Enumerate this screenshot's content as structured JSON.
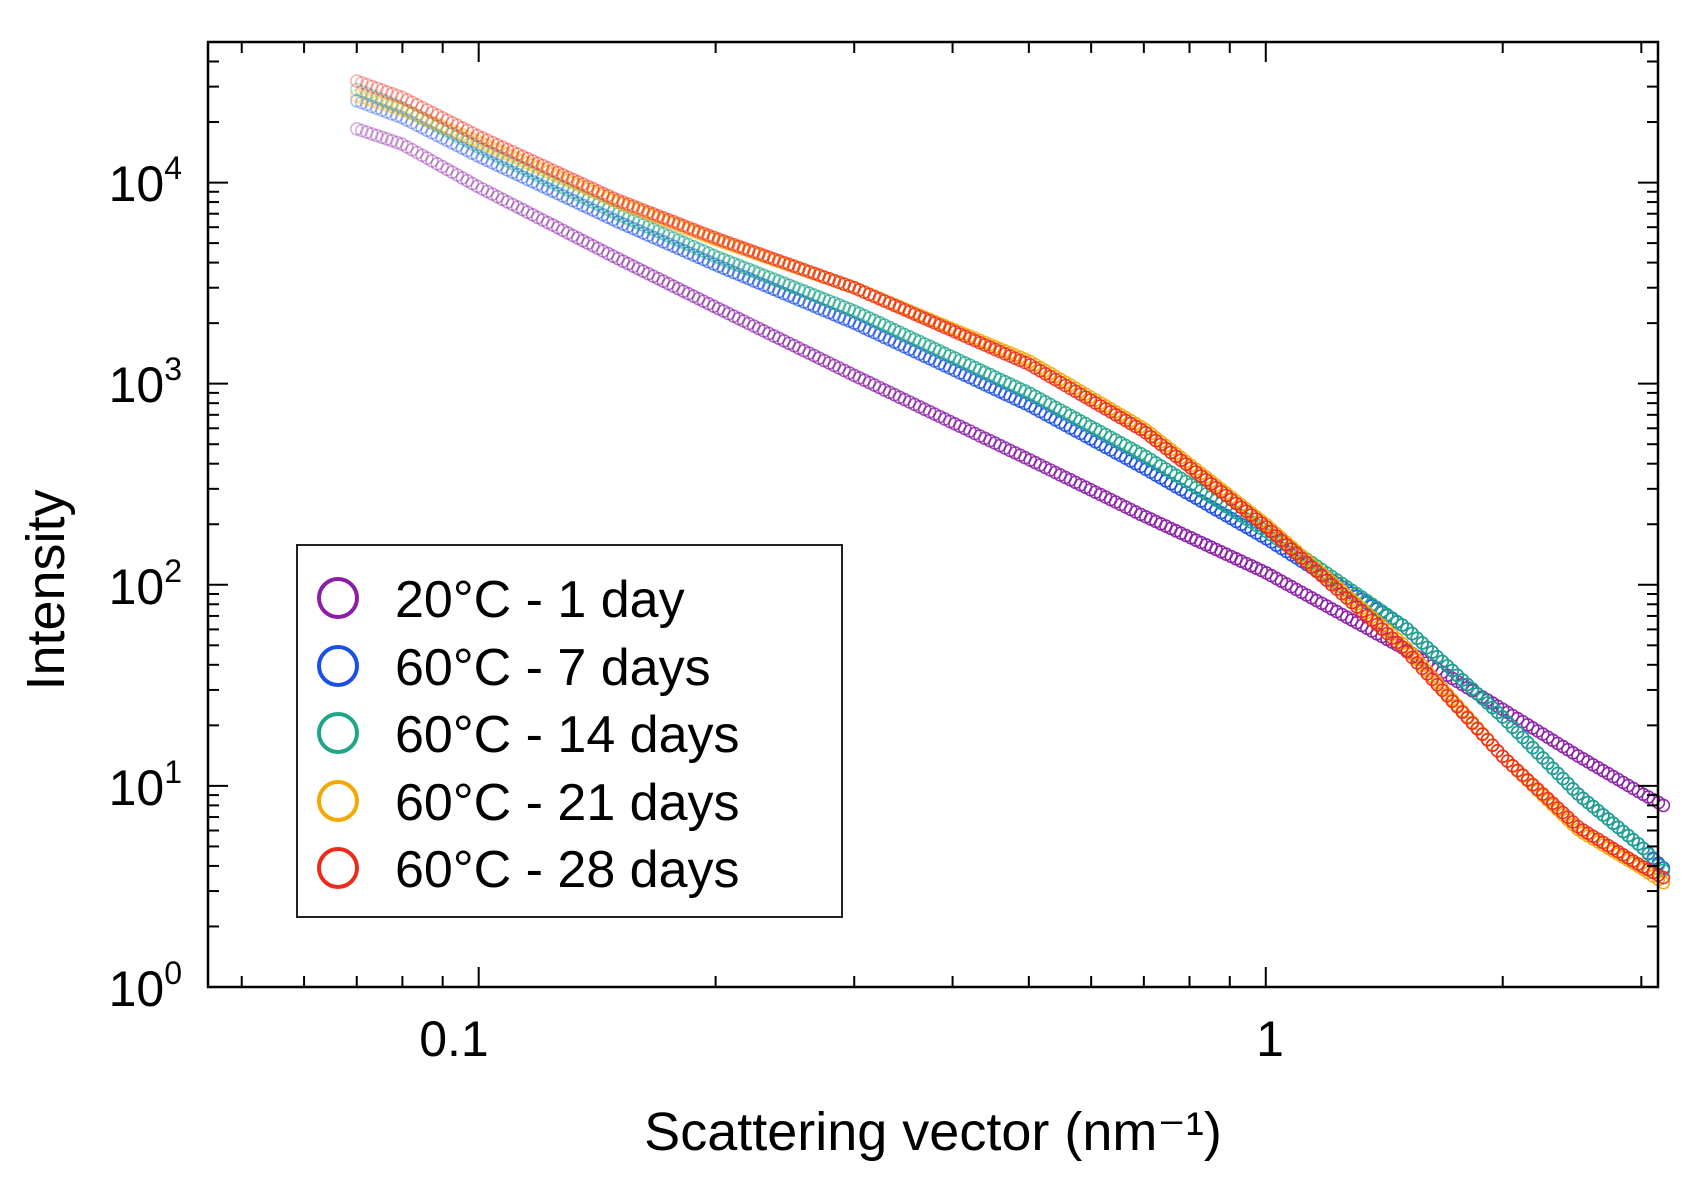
{
  "chart_data": {
    "type": "scatter",
    "title": "",
    "xlabel": "Scattering vector (nm⁻¹)",
    "ylabel": "Intensity",
    "xscale": "log",
    "yscale": "log",
    "xlim": [
      0.0453,
      3.15
    ],
    "ylim": [
      1,
      50000
    ],
    "x_ticks": [
      {
        "value": 0.1,
        "label": "0.1"
      },
      {
        "value": 1,
        "label": "1"
      }
    ],
    "y_ticks": [
      {
        "value": 1,
        "base": "10",
        "exp": "0"
      },
      {
        "value": 10,
        "base": "10",
        "exp": "1"
      },
      {
        "value": 100,
        "base": "10",
        "exp": "2"
      },
      {
        "value": 1000,
        "base": "10",
        "exp": "3"
      },
      {
        "value": 10000,
        "base": "10",
        "exp": "4"
      }
    ],
    "grid": false,
    "legend_position": "bottom-left",
    "marker": "open-circle",
    "series": [
      {
        "name": "20°C - 1 day",
        "color": "#8a1fa6",
        "points": [
          [
            0.07,
            18500
          ],
          [
            0.08,
            15500
          ],
          [
            0.1,
            9500
          ],
          [
            0.15,
            4200
          ],
          [
            0.2,
            2400
          ],
          [
            0.3,
            1100
          ],
          [
            0.5,
            420
          ],
          [
            0.7,
            220
          ],
          [
            1.0,
            115
          ],
          [
            1.5,
            48
          ],
          [
            2.0,
            24
          ],
          [
            2.5,
            14
          ],
          [
            3.0,
            9.2
          ],
          [
            3.2,
            8.0
          ]
        ]
      },
      {
        "name": "60°C - 7 days",
        "color": "#1a4fe8",
        "points": [
          [
            0.07,
            25500
          ],
          [
            0.08,
            21000
          ],
          [
            0.1,
            13500
          ],
          [
            0.15,
            6400
          ],
          [
            0.2,
            3900
          ],
          [
            0.3,
            2000
          ],
          [
            0.5,
            780
          ],
          [
            0.7,
            380
          ],
          [
            1.0,
            170
          ],
          [
            1.5,
            62
          ],
          [
            2.0,
            22
          ],
          [
            2.5,
            9
          ],
          [
            3.0,
            5
          ],
          [
            3.2,
            3.9
          ]
        ]
      },
      {
        "name": "60°C - 14 days",
        "color": "#1fa58a",
        "points": [
          [
            0.07,
            29000
          ],
          [
            0.08,
            23500
          ],
          [
            0.1,
            15000
          ],
          [
            0.15,
            7000
          ],
          [
            0.2,
            4300
          ],
          [
            0.3,
            2300
          ],
          [
            0.5,
            900
          ],
          [
            0.7,
            440
          ],
          [
            1.0,
            185
          ],
          [
            1.5,
            62
          ],
          [
            2.0,
            22
          ],
          [
            2.5,
            9
          ],
          [
            3.0,
            5
          ],
          [
            3.2,
            3.8
          ]
        ]
      },
      {
        "name": "60°C - 21 days",
        "color": "#f5a800",
        "points": [
          [
            0.07,
            27000
          ],
          [
            0.08,
            23000
          ],
          [
            0.1,
            16000
          ],
          [
            0.15,
            8000
          ],
          [
            0.2,
            5200
          ],
          [
            0.3,
            3000
          ],
          [
            0.5,
            1300
          ],
          [
            0.7,
            600
          ],
          [
            1.0,
            200
          ],
          [
            1.5,
            50
          ],
          [
            2.0,
            14
          ],
          [
            2.5,
            6
          ],
          [
            3.0,
            3.9
          ],
          [
            3.2,
            3.3
          ]
        ]
      },
      {
        "name": "60°C - 28 days",
        "color": "#ee2a1a",
        "points": [
          [
            0.07,
            32000
          ],
          [
            0.08,
            26500
          ],
          [
            0.1,
            17000
          ],
          [
            0.15,
            8200
          ],
          [
            0.2,
            5300
          ],
          [
            0.3,
            3000
          ],
          [
            0.5,
            1250
          ],
          [
            0.7,
            580
          ],
          [
            1.0,
            195
          ],
          [
            1.5,
            48
          ],
          [
            2.0,
            14
          ],
          [
            2.5,
            6.2
          ],
          [
            3.0,
            4.0
          ],
          [
            3.2,
            3.5
          ]
        ]
      }
    ]
  }
}
